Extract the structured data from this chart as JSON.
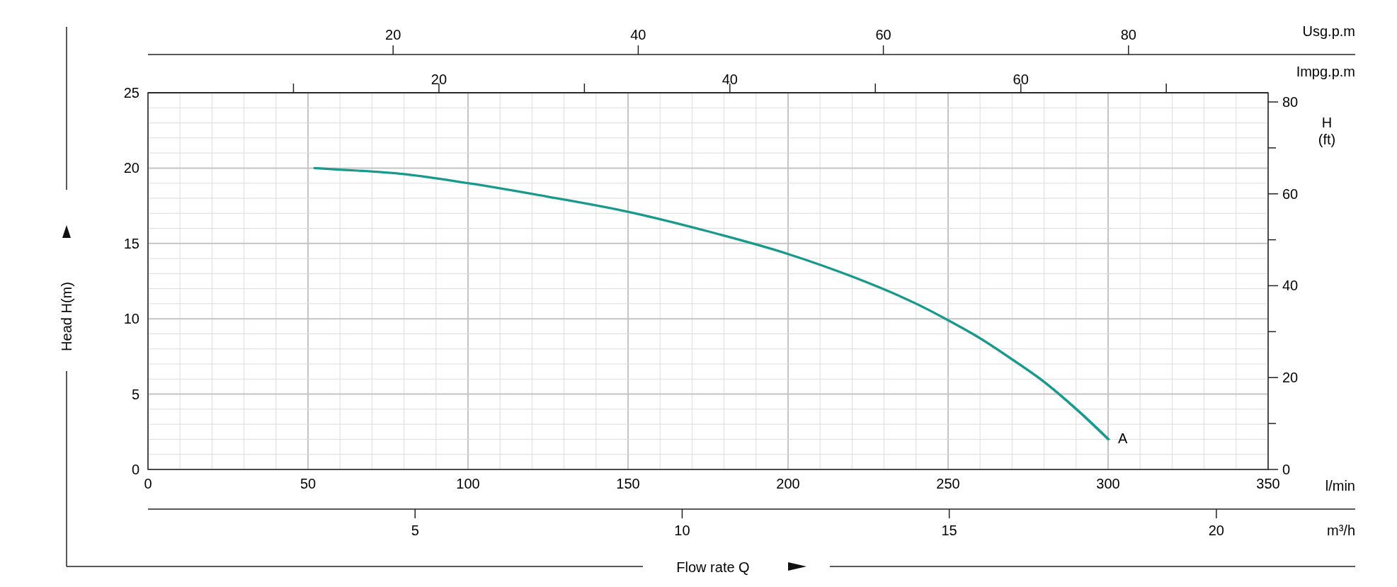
{
  "chart_data": [
    {
      "type": "line",
      "xlabel": "l/min",
      "ylabel": "Head H(m)",
      "y2label": "H (ft)",
      "x2label": "Impg.p.m",
      "title": "Flow rate Q",
      "xlim": [
        0,
        350
      ],
      "xticks": [
        0,
        {
          "value": 10,
          "label": null
        },
        {
          "value": 20,
          "label": null
        },
        {
          "value": 30,
          "label": null
        },
        {
          "value": 40,
          "label": null
        },
        50,
        {
          "value": 60,
          "label": null
        },
        {
          "value": 70,
          "label": null
        },
        {
          "value": 80,
          "label": null
        },
        {
          "value": 90,
          "label": null
        },
        100,
        {
          "value": 110,
          "label": null
        },
        {
          "value": 120,
          "label": null
        },
        {
          "value": 130,
          "label": null
        },
        {
          "value": 140,
          "label": null
        },
        150,
        {
          "value": 160,
          "label": null
        },
        {
          "value": 170,
          "label": null
        },
        {
          "value": 180,
          "label": null
        },
        {
          "value": 190,
          "label": null
        },
        200,
        {
          "value": 210,
          "label": null
        },
        {
          "value": 220,
          "label": null
        },
        {
          "value": 230,
          "label": null
        },
        {
          "value": 240,
          "label": null
        },
        250,
        {
          "value": 260,
          "label": null
        },
        {
          "value": 270,
          "label": null
        },
        {
          "value": 280,
          "label": null
        },
        {
          "value": 290,
          "label": null
        },
        300,
        {
          "value": 310,
          "label": null
        },
        {
          "value": 320,
          "label": null
        },
        {
          "value": 330,
          "label": null
        },
        {
          "value": 340,
          "label": null
        },
        350
      ],
      "ylim": [
        0,
        25
      ],
      "yticks": [
        0,
        {
          "value": 1,
          "label": null
        },
        {
          "value": 2,
          "label": null
        },
        {
          "value": 3,
          "label": null
        },
        {
          "value": 4,
          "label": null
        },
        5,
        {
          "value": 6,
          "label": null
        },
        {
          "value": 7,
          "label": null
        },
        {
          "value": 8,
          "label": null
        },
        {
          "value": 9,
          "label": null
        },
        10,
        {
          "value": 11,
          "label": null
        },
        {
          "value": 12,
          "label": null
        },
        {
          "value": 13,
          "label": null
        },
        {
          "value": 14,
          "label": null
        },
        15,
        {
          "value": 16,
          "label": null
        },
        {
          "value": 17,
          "label": null
        },
        {
          "value": 18,
          "label": null
        },
        {
          "value": 19,
          "label": null
        },
        20,
        {
          "value": 21,
          "label": null
        },
        {
          "value": 22,
          "label": null
        },
        {
          "value": 23,
          "label": null
        },
        {
          "value": 24,
          "label": null
        },
        25
      ],
      "y2lim": [
        0,
        82
      ],
      "y2ticks": [
        0,
        {
          "value": 10,
          "label": null
        },
        20,
        {
          "value": 30,
          "label": null
        },
        40,
        {
          "value": 50,
          "label": null
        },
        60,
        {
          "value": 70,
          "label": null
        },
        80
      ],
      "x2lim": [
        0,
        77
      ],
      "x2ticks": [
        {
          "value": 10,
          "label": null
        },
        20,
        {
          "value": 30,
          "label": null
        },
        40,
        {
          "value": 50,
          "label": null
        },
        60,
        {
          "value": 70,
          "label": null
        }
      ],
      "grid": true,
      "annotations": [
        {
          "text": "A",
          "x": 300,
          "y": 2
        }
      ],
      "series": [
        {
          "color": "#1a9a8c",
          "x": [
            52,
            60,
            80,
            100,
            125,
            150,
            175,
            200,
            220,
            240,
            250,
            260,
            270,
            280,
            290,
            300
          ],
          "values": [
            20.0,
            19.9,
            19.6,
            19.0,
            18.1,
            17.1,
            15.8,
            14.3,
            12.8,
            11.0,
            9.9,
            8.7,
            7.3,
            5.8,
            4.0,
            2.0
          ]
        }
      ]
    },
    {
      "type": "line",
      "xlabel": "m³/h",
      "x2label": "Usg.p.m",
      "tick_labels": "x",
      "xlim": [
        0,
        22.6
      ],
      "xticks": [
        5,
        10,
        15,
        20
      ],
      "x2lim": [
        0,
        98.5
      ],
      "x2ticks": [
        20,
        40,
        60,
        80
      ],
      "ylim": [
        0,
        25
      ],
      "series": [
        {
          "color": "#1a9a8c",
          "x": [
            3.12,
            3.6,
            4.8,
            6.0,
            7.5,
            9.0,
            10.5,
            12.0,
            13.2,
            14.4,
            15.0,
            15.6,
            16.2,
            16.8,
            17.4,
            18.0
          ],
          "values": [
            20.0,
            19.9,
            19.6,
            19.0,
            18.1,
            17.1,
            15.8,
            14.3,
            12.8,
            11.0,
            9.9,
            8.7,
            7.3,
            5.8,
            4.0,
            2.0
          ]
        }
      ]
    }
  ]
}
